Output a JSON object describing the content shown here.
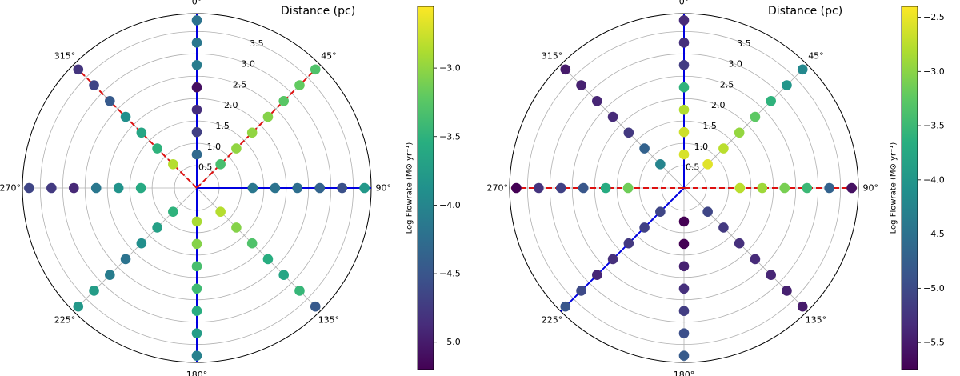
{
  "chart_data": [
    {
      "type": "polar-scatter",
      "radial_title": "Distance (pc)",
      "angle_ticks": [
        {
          "deg": 0,
          "label": "0°"
        },
        {
          "deg": 45,
          "label": "45°"
        },
        {
          "deg": 90,
          "label": "90°"
        },
        {
          "deg": 135,
          "label": "135°"
        },
        {
          "deg": 180,
          "label": "180°"
        },
        {
          "deg": 225,
          "label": "225°"
        },
        {
          "deg": 270,
          "label": "270°"
        },
        {
          "deg": 315,
          "label": "315°"
        }
      ],
      "r_ticks": [
        0.5,
        1.0,
        1.5,
        2.0,
        2.5,
        3.0,
        3.5
      ],
      "r_tick_labels": [
        "0.5",
        "1.0",
        "1.5",
        "2.0",
        "2.5",
        "3.0",
        "3.5"
      ],
      "rlim": [
        0,
        3.9
      ],
      "radii": [
        0.75,
        1.25,
        1.75,
        2.25,
        2.75,
        3.25,
        3.75
      ],
      "directions": [
        {
          "angle": 0,
          "line": "solid",
          "values": [
            -4.3,
            -4.7,
            -4.85,
            -5.1,
            -4.1,
            -4.15,
            -4.2
          ]
        },
        {
          "angle": 45,
          "line": "dashed",
          "values": [
            -3.35,
            -3.0,
            -3.0,
            -3.05,
            -3.25,
            -3.2,
            -3.3
          ]
        },
        {
          "angle": 90,
          "line": "solid",
          "values": [
            null,
            -4.15,
            -4.2,
            -4.25,
            -4.35,
            -4.55,
            -3.8
          ]
        },
        {
          "angle": 135,
          "line": null,
          "values": [
            -2.85,
            -3.05,
            -3.3,
            -3.55,
            -3.65,
            -3.45,
            -4.45
          ]
        },
        {
          "angle": 180,
          "line": "solid",
          "values": [
            -2.9,
            -3.05,
            -3.35,
            -3.4,
            -3.55,
            -3.75,
            -4.05
          ]
        },
        {
          "angle": 225,
          "line": null,
          "values": [
            -3.5,
            -3.7,
            -3.9,
            -4.2,
            -4.1,
            -3.75,
            -3.8
          ]
        },
        {
          "angle": 270,
          "line": null,
          "values": [
            null,
            -3.6,
            -3.85,
            -4.15,
            -4.9,
            -4.75,
            -4.65
          ]
        },
        {
          "angle": 315,
          "line": "dashed",
          "values": [
            -2.85,
            -3.5,
            -3.65,
            -3.9,
            -4.45,
            -4.65,
            -4.8
          ]
        }
      ],
      "colorbar": {
        "label": "Log Flowrate (M⊙ yr⁻¹)",
        "min": -5.2,
        "max": -2.55,
        "ticks": [
          -5.0,
          -4.5,
          -4.0,
          -3.5,
          -3.0
        ],
        "tick_labels": [
          "−5.0",
          "−4.5",
          "−4.0",
          "−3.5",
          "−3.0"
        ]
      }
    },
    {
      "type": "polar-scatter",
      "radial_title": "Distance (pc)",
      "angle_ticks": [
        {
          "deg": 0,
          "label": "0°"
        },
        {
          "deg": 45,
          "label": "45°"
        },
        {
          "deg": 90,
          "label": "90°"
        },
        {
          "deg": 135,
          "label": "135°"
        },
        {
          "deg": 180,
          "label": "180°"
        },
        {
          "deg": 225,
          "label": "225°"
        },
        {
          "deg": 270,
          "label": "270°"
        },
        {
          "deg": 315,
          "label": "315°"
        }
      ],
      "r_ticks": [
        0.5,
        1.0,
        1.5,
        2.0,
        2.5,
        3.0,
        3.5
      ],
      "r_tick_labels": [
        "0.5",
        "1.0",
        "1.5",
        "2.0",
        "2.5",
        "3.0",
        "3.5"
      ],
      "rlim": [
        0,
        3.9
      ],
      "radii": [
        0.75,
        1.25,
        1.75,
        2.25,
        2.75,
        3.25,
        3.75
      ],
      "directions": [
        {
          "angle": 0,
          "line": "solid",
          "values": [
            -2.6,
            -2.65,
            -2.8,
            -3.6,
            -5.15,
            -5.3,
            -5.35
          ]
        },
        {
          "angle": 45,
          "line": null,
          "values": [
            -2.55,
            -2.75,
            -2.95,
            -3.25,
            -3.6,
            -4.0,
            -4.2
          ]
        },
        {
          "angle": 90,
          "line": "dashed",
          "values": [
            null,
            -2.75,
            -2.9,
            -3.1,
            -3.5,
            -4.7,
            -5.6
          ]
        },
        {
          "angle": 135,
          "line": null,
          "values": [
            -5.05,
            -5.2,
            -5.3,
            -5.35,
            -5.4,
            -5.45,
            -5.5
          ]
        },
        {
          "angle": 180,
          "line": null,
          "values": [
            -5.75,
            -5.8,
            -5.45,
            -5.3,
            -5.15,
            -4.95,
            -4.8
          ]
        },
        {
          "angle": 225,
          "line": "solid",
          "values": [
            -5.05,
            -5.1,
            -5.2,
            -5.3,
            -5.4,
            -5.0,
            -4.85
          ]
        },
        {
          "angle": 270,
          "line": "dashed",
          "values": [
            null,
            -3.15,
            -3.7,
            -4.85,
            -5.1,
            -5.25,
            -5.75
          ]
        },
        {
          "angle": 315,
          "line": null,
          "values": [
            -4.25,
            -4.7,
            -5.2,
            -5.35,
            -5.4,
            -5.45,
            -5.5
          ]
        }
      ],
      "colorbar": {
        "label": "Log Flowrate (M⊙ yr⁻¹)",
        "min": -5.75,
        "max": -2.4,
        "ticks": [
          -5.5,
          -5.0,
          -4.5,
          -4.0,
          -3.5,
          -3.0,
          -2.5
        ],
        "tick_labels": [
          "−5.5",
          "−5.0",
          "−4.5",
          "−4.0",
          "−3.5",
          "−3.0",
          "−2.5"
        ]
      }
    }
  ]
}
